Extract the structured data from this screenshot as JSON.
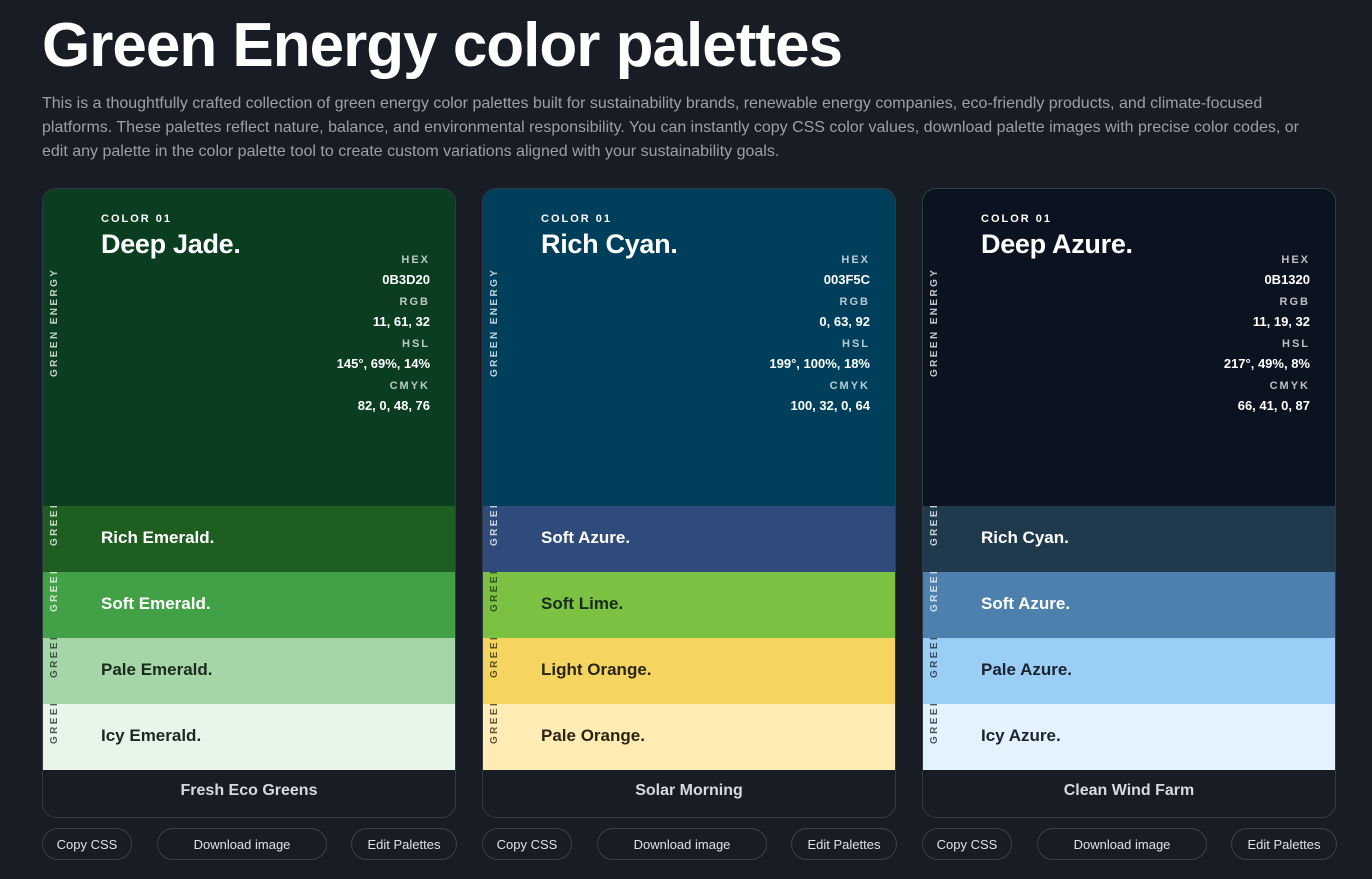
{
  "page": {
    "title": "Green Energy color palettes",
    "intro": "This is a thoughtfully crafted collection of green energy color palettes built for sustainability brands, renewable energy companies, eco-friendly products, and climate-focused platforms. These palettes reflect nature, balance, and environmental responsibility. You can instantly copy CSS color values, download palette images with precise color codes, or edit any palette in the color palette tool to create custom variations aligned with your sustainability goals."
  },
  "labels": {
    "vertical": "GREEN ENERGY",
    "color_index": "COLOR 01",
    "hex": "HEX",
    "rgb": "RGB",
    "hsl": "HSL",
    "cmyk": "CMYK"
  },
  "buttons": {
    "copy": "Copy CSS",
    "download": "Download image",
    "edit": "Edit Palettes"
  },
  "palettes": [
    {
      "name": "Fresh Eco Greens",
      "main": {
        "name": "Deep Jade.",
        "hex": "0B3D20",
        "rgb": "11, 61, 32",
        "hsl": "145°, 69%, 14%",
        "cmyk": "82, 0, 48, 76",
        "color": "#0B3D20",
        "text": "#ffffff"
      },
      "subs": [
        {
          "name": "Rich Emerald.",
          "color": "#1E5E21",
          "text": "#ffffff"
        },
        {
          "name": "Soft Emerald.",
          "color": "#42A047",
          "text": "#ffffff"
        },
        {
          "name": "Pale Emerald.",
          "color": "#A5D6A7",
          "text": "#1b2a1f"
        },
        {
          "name": "Icy Emerald.",
          "color": "#E8F5E9",
          "text": "#1b2a1f"
        }
      ]
    },
    {
      "name": "Solar Morning",
      "main": {
        "name": "Rich Cyan.",
        "hex": "003F5C",
        "rgb": "0, 63, 92",
        "hsl": "199°, 100%, 18%",
        "cmyk": "100, 32, 0, 64",
        "color": "#003F5C",
        "text": "#ffffff"
      },
      "subs": [
        {
          "name": "Soft Azure.",
          "color": "#2F4B7C",
          "text": "#ffffff"
        },
        {
          "name": "Soft Lime.",
          "color": "#7CC242",
          "text": "#1b2a1f"
        },
        {
          "name": "Light Orange.",
          "color": "#F5D55F",
          "text": "#2a2615"
        },
        {
          "name": "Pale Orange.",
          "color": "#FFEBB4",
          "text": "#2a2615"
        }
      ]
    },
    {
      "name": "Clean Wind Farm",
      "main": {
        "name": "Deep Azure.",
        "hex": "0B1320",
        "rgb": "11, 19, 32",
        "hsl": "217°, 49%, 8%",
        "cmyk": "66, 41, 0, 87",
        "color": "#0B1320",
        "text": "#ffffff"
      },
      "subs": [
        {
          "name": "Rich Cyan.",
          "color": "#1F3A4C",
          "text": "#ffffff"
        },
        {
          "name": "Soft Azure.",
          "color": "#4E80AE",
          "text": "#ffffff"
        },
        {
          "name": "Pale Azure.",
          "color": "#9ACEF4",
          "text": "#1a2330"
        },
        {
          "name": "Icy Azure.",
          "color": "#E3F2FD",
          "text": "#1a2330"
        }
      ]
    }
  ]
}
